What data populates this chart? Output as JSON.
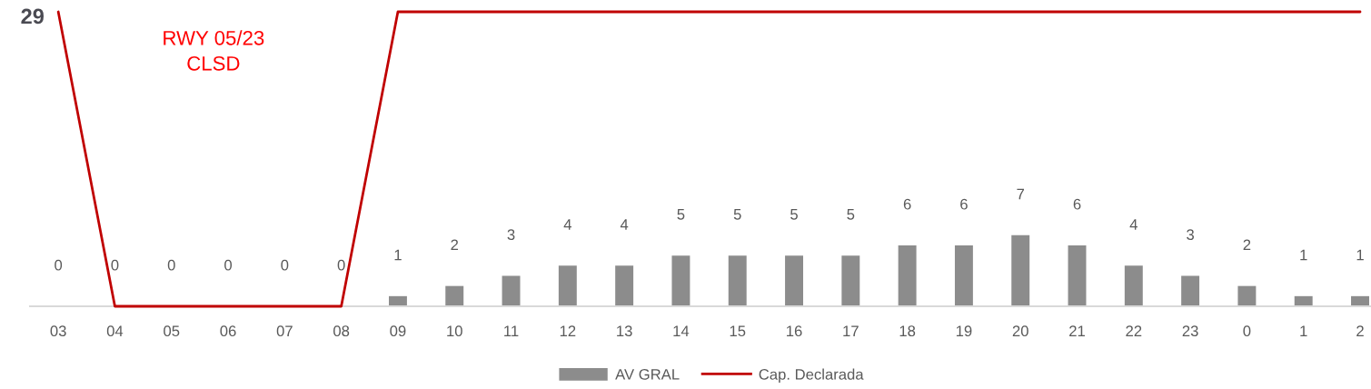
{
  "chart_data": {
    "type": "bar",
    "categories": [
      "03",
      "04",
      "05",
      "06",
      "07",
      "08",
      "09",
      "10",
      "11",
      "12",
      "13",
      "14",
      "15",
      "16",
      "17",
      "18",
      "19",
      "20",
      "21",
      "22",
      "23",
      "0",
      "1",
      "2"
    ],
    "series": [
      {
        "name": "AV GRAL",
        "color": "#8c8c8c",
        "values": [
          0,
          0,
          0,
          0,
          0,
          0,
          1,
          2,
          3,
          4,
          4,
          5,
          5,
          5,
          5,
          6,
          6,
          7,
          6,
          4,
          3,
          2,
          1,
          1
        ],
        "value_labels": [
          "0",
          "0",
          "0",
          "0",
          "0",
          "0",
          "1",
          "2",
          "3",
          "4",
          "4",
          "5",
          "5",
          "5",
          "5",
          "6",
          "6",
          "7",
          "6",
          "4",
          "3",
          "2",
          "1",
          "1"
        ]
      },
      {
        "name": "Cap. Declarada",
        "type": "line",
        "color": "#c00000",
        "values": [
          29,
          0,
          0,
          0,
          0,
          0,
          29,
          29,
          29,
          29,
          29,
          29,
          29,
          29,
          29,
          29,
          29,
          29,
          29,
          29,
          29,
          29,
          29,
          29
        ],
        "value_labels": [
          "29",
          null,
          null,
          null,
          null,
          null,
          null,
          null,
          null,
          null,
          null,
          null,
          null,
          null,
          null,
          null,
          null,
          null,
          null,
          null,
          null,
          null,
          null,
          null
        ]
      }
    ],
    "tick_labels": "x",
    "grid": false,
    "legend": "bottom",
    "annotations": [
      "RWY 05/23\nCLSD"
    ]
  }
}
